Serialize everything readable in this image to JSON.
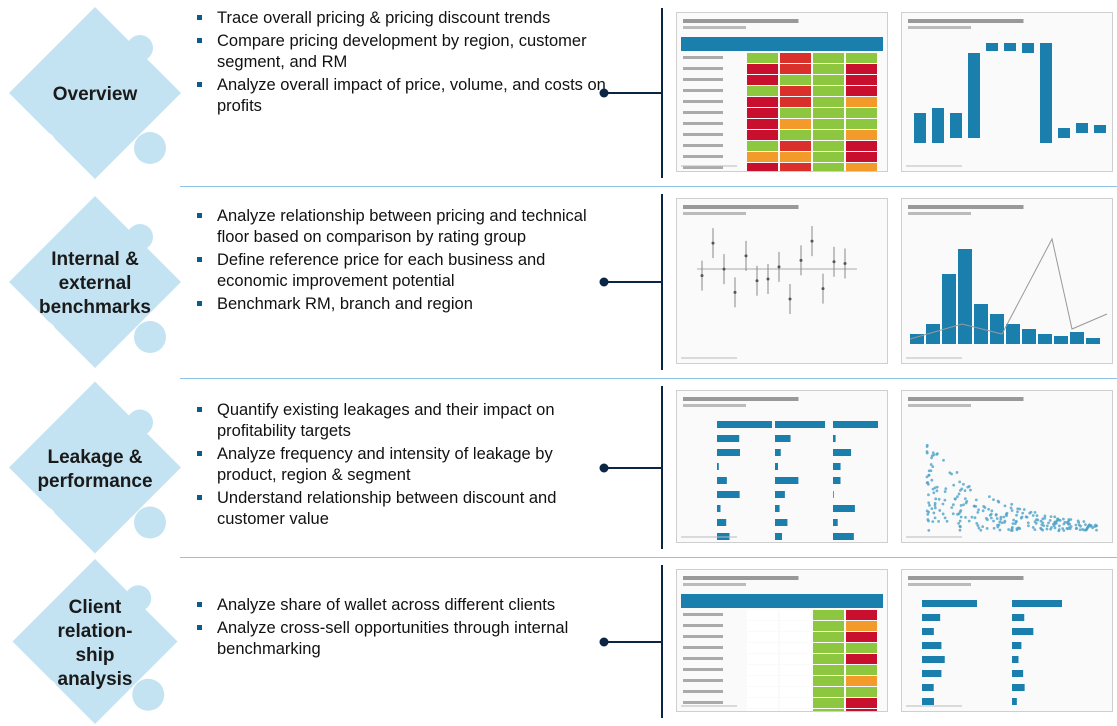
{
  "sections": [
    {
      "label": [
        "Overview"
      ],
      "bullets": [
        "Trace overall pricing & pricing discount trends",
        "Compare pricing development by region, customer segment, and RM",
        "Analyze overall impact of price, volume, and costs on profits"
      ]
    },
    {
      "label": [
        "Internal &",
        "external",
        "benchmarks"
      ],
      "bullets": [
        "Analyze relationship between pricing and technical floor based on comparison by rating group",
        "Define reference price for each business and economic improvement potential",
        "Benchmark RM, branch and region"
      ]
    },
    {
      "label": [
        "Leakage &",
        "performance"
      ],
      "bullets": [
        "Quantify existing leakages and their impact on profitability targets",
        "Analyze frequency and intensity of leakage by product, region & segment",
        "Understand relationship between discount and customer value"
      ]
    },
    {
      "label": [
        "Client",
        "relation-",
        "ship",
        "analysis"
      ],
      "bullets": [
        "Analyze share of wallet across different clients",
        "Analyze cross-sell opportunities through internal benchmarking"
      ]
    }
  ]
}
